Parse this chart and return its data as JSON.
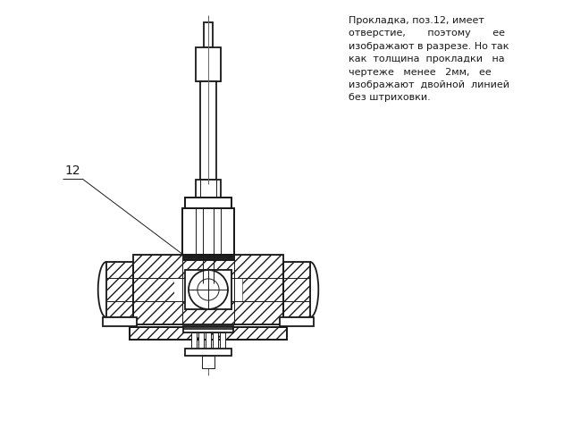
{
  "background_color": "#ffffff",
  "line_color": "#1a1a1a",
  "text_color": "#1a1a1a",
  "annotation_text": "Прокладка, поз.12, имеет\nотверстие,       поэтому       ее\nизображают в разрезе. Но так\nкак  толщина  прокладки   на\nчертеже   менее   2мм,   ее\nизображают  двойной  линией\nбез штриховки.",
  "label_text": "12"
}
